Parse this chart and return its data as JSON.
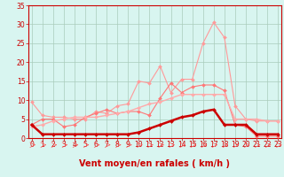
{
  "xlabel": "Vent moyen/en rafales ( km/h )",
  "background_color": "#d8f5f0",
  "grid_color": "#aaccbb",
  "x_values": [
    0,
    1,
    2,
    3,
    4,
    5,
    6,
    7,
    8,
    9,
    10,
    11,
    12,
    13,
    14,
    15,
    16,
    17,
    18,
    19,
    20,
    21,
    22,
    23
  ],
  "series": [
    {
      "name": "light_pink_line",
      "color": "#ff9999",
      "linewidth": 0.8,
      "markersize": 2.0,
      "values": [
        9.5,
        6.0,
        5.5,
        5.5,
        5.0,
        5.0,
        7.0,
        6.5,
        8.5,
        9.0,
        15.0,
        14.5,
        19.0,
        12.0,
        15.5,
        15.5,
        25.0,
        30.5,
        26.5,
        8.5,
        5.0,
        4.5,
        4.5,
        4.5
      ]
    },
    {
      "name": "medium_pink_line",
      "color": "#ff7777",
      "linewidth": 0.8,
      "markersize": 2.0,
      "values": [
        3.5,
        5.0,
        5.0,
        3.0,
        3.5,
        5.5,
        6.5,
        7.5,
        6.5,
        7.0,
        7.0,
        6.0,
        10.5,
        14.5,
        12.0,
        13.5,
        14.0,
        14.0,
        12.5,
        3.5,
        3.0,
        0.5,
        0.5,
        0.5
      ]
    },
    {
      "name": "diagonal_line",
      "color": "#ffaaaa",
      "linewidth": 1.0,
      "markersize": 2.0,
      "values": [
        3.0,
        3.5,
        4.5,
        5.0,
        5.5,
        5.5,
        5.5,
        6.0,
        6.5,
        7.0,
        8.0,
        9.0,
        9.5,
        10.5,
        11.5,
        11.5,
        11.5,
        11.5,
        11.5,
        5.0,
        5.0,
        5.0,
        4.5,
        4.5
      ]
    },
    {
      "name": "dark_red_line",
      "color": "#cc0000",
      "linewidth": 1.8,
      "markersize": 2.0,
      "values": [
        3.5,
        1.0,
        1.0,
        1.0,
        1.0,
        1.0,
        1.0,
        1.0,
        1.0,
        1.0,
        1.5,
        2.5,
        3.5,
        4.5,
        5.5,
        6.0,
        7.0,
        7.5,
        3.5,
        3.5,
        3.5,
        1.0,
        1.0,
        1.0
      ]
    }
  ],
  "ylim": [
    0,
    35
  ],
  "xlim": [
    -0.3,
    23.3
  ],
  "xticks": [
    0,
    1,
    2,
    3,
    4,
    5,
    6,
    7,
    8,
    9,
    10,
    11,
    12,
    13,
    14,
    15,
    16,
    17,
    18,
    19,
    20,
    21,
    22,
    23
  ],
  "yticks": [
    0,
    5,
    10,
    15,
    20,
    25,
    30,
    35
  ],
  "tick_color": "#cc0000",
  "label_color": "#cc0000",
  "tick_fontsize": 5.5,
  "xlabel_fontsize": 7.0,
  "spine_color": "#cc0000"
}
